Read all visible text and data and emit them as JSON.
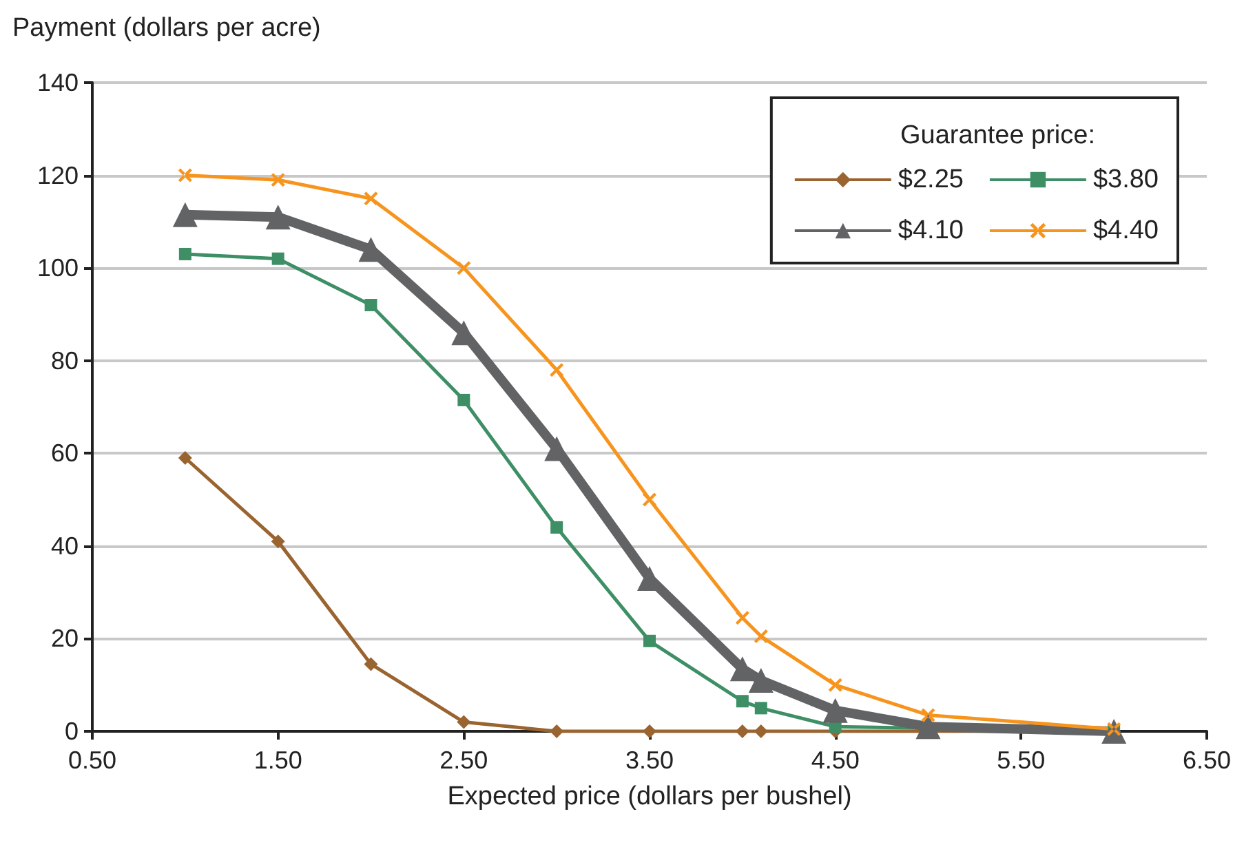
{
  "chart_data": {
    "type": "line",
    "xlabel": "Expected price (dollars per bushel)",
    "ylabel": "Payment (dollars per acre)",
    "legend_title": "Guarantee price:",
    "x": [
      1.0,
      1.5,
      2.0,
      2.5,
      3.0,
      3.5,
      4.0,
      4.1,
      4.5,
      5.0,
      6.0
    ],
    "series": [
      {
        "name": "$2.25",
        "color": "#9a6430",
        "marker": "diamond",
        "values": [
          59,
          41,
          14.5,
          2,
          0,
          0,
          0,
          0,
          0,
          null,
          0
        ]
      },
      {
        "name": "$3.80",
        "color": "#3e8f66",
        "marker": "square",
        "values": [
          103,
          102,
          92,
          71.5,
          44,
          19.5,
          6.5,
          5,
          1,
          null,
          0
        ]
      },
      {
        "name": "$4.10",
        "color": "#626365",
        "marker": "triangle",
        "values": [
          111.5,
          111,
          104,
          86,
          61,
          33,
          13.5,
          11,
          4.5,
          1,
          0
        ]
      },
      {
        "name": "$4.40",
        "color": "#f7941d",
        "marker": "cross",
        "values": [
          120,
          119,
          115,
          100,
          78,
          50,
          24.5,
          20.5,
          10,
          3.5,
          0.5
        ]
      }
    ],
    "xlim": [
      0.5,
      6.5
    ],
    "xticks": [
      {
        "value": 0.5,
        "label": "0.50"
      },
      {
        "value": 1.5,
        "label": "1.50"
      },
      {
        "value": 2.5,
        "label": "2.50"
      },
      {
        "value": 3.5,
        "label": "3.50"
      },
      {
        "value": 4.5,
        "label": "4.50"
      },
      {
        "value": 5.5,
        "label": "5.50"
      },
      {
        "value": 6.5,
        "label": "6.50"
      }
    ],
    "ylim": [
      0,
      140
    ],
    "yticks": [
      0,
      20,
      40,
      60,
      80,
      100,
      120,
      140
    ],
    "grid": "y",
    "legend": "top right"
  }
}
